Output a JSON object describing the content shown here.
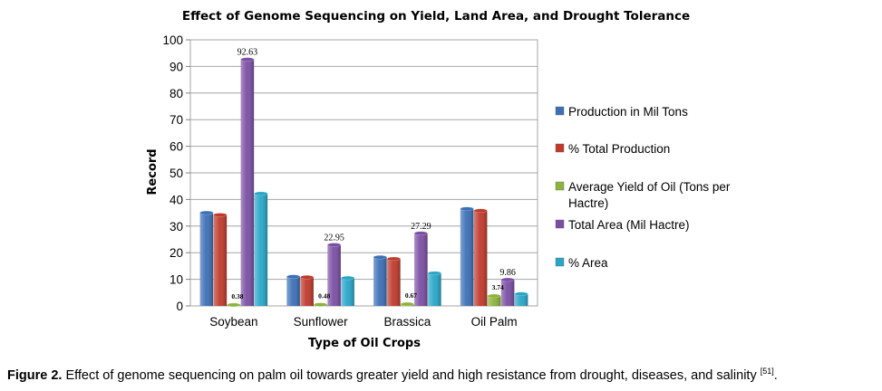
{
  "chart_data": {
    "type": "bar",
    "title": "Effect of Genome Sequencing on Yield, Land Area, and Drought Tolerance",
    "xlabel": "Type of Oil Crops",
    "ylabel": "Record",
    "ylim": [
      0,
      100
    ],
    "yticks": [
      0,
      10,
      20,
      30,
      40,
      50,
      60,
      70,
      80,
      90,
      100
    ],
    "categories": [
      "Soybean",
      "Sunflower",
      "Brassica",
      "Oil Palm"
    ],
    "legend_position": "right",
    "series": [
      {
        "name": "Production in Mil Tons",
        "color": "#3b6fb6",
        "values": [
          35,
          11,
          18.3,
          36.5
        ]
      },
      {
        "name": "% Total Production",
        "color": "#c0392b",
        "values": [
          34.2,
          10.8,
          17.7,
          35.8
        ]
      },
      {
        "name": "Average Yield of Oil (Tons per Hactre)",
        "color": "#8db33a",
        "values": [
          0.38,
          0.48,
          0.67,
          3.74
        ]
      },
      {
        "name": "Total Area (Mil Hactre)",
        "color": "#7a4ea3",
        "values": [
          92.63,
          22.95,
          27.29,
          9.86
        ]
      },
      {
        "name": "% Area",
        "color": "#27a6c8",
        "values": [
          42.2,
          10.5,
          12.3,
          4.5
        ]
      }
    ],
    "data_labels": [
      {
        "series": 2,
        "category": 0,
        "text": "0.38"
      },
      {
        "series": 2,
        "category": 1,
        "text": "0.48"
      },
      {
        "series": 2,
        "category": 2,
        "text": "0.67"
      },
      {
        "series": 2,
        "category": 3,
        "text": "3.74"
      },
      {
        "series": 3,
        "category": 0,
        "text": "92.63"
      },
      {
        "series": 3,
        "category": 1,
        "text": "22.95"
      },
      {
        "series": 3,
        "category": 2,
        "text": "27.29"
      },
      {
        "series": 3,
        "category": 3,
        "text": "9.86"
      }
    ],
    "legend_lines": [
      [
        "Production in Mil Tons"
      ],
      [
        "% Total Production"
      ],
      [
        "Average Yield of Oil (Tons per",
        "Hactre)"
      ],
      [
        "Total Area (Mil Hactre)"
      ],
      [
        "% Area"
      ]
    ]
  },
  "caption": {
    "label": "Figure 2.",
    "text": " Effect of genome sequencing on palm oil towards greater yield and high resistance from drought, diseases, and salinity ",
    "ref": "[51]",
    "end": "."
  }
}
